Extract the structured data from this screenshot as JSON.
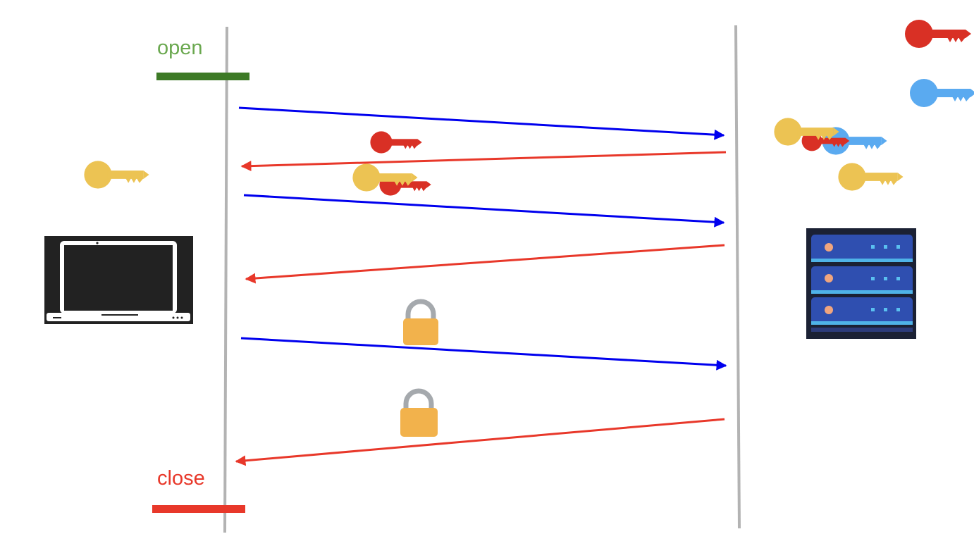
{
  "labels": {
    "open": "open",
    "close": "close"
  },
  "colors": {
    "open": "#6aa84f",
    "open_bar": "#3d7a26",
    "close": "#e8382a",
    "close_bar": "#e8382a",
    "lifeline": "#b3b3b3",
    "client_to_server_arrow": "#0000ee",
    "server_to_client_arrow": "#e8382a",
    "key_red": "#d93025",
    "key_blue": "#5aaaf0",
    "key_yellow": "#ecc353",
    "lock_body": "#f2b24c",
    "lock_shackle": "#a5a9ad"
  },
  "participants": {
    "client": "laptop-icon",
    "server": "server-rack-icon"
  },
  "messages": [
    {
      "from": "client",
      "to": "server",
      "attachment": "none"
    },
    {
      "from": "server",
      "to": "client",
      "attachment": "red-key"
    },
    {
      "from": "client",
      "to": "server",
      "attachment": "yellow-key-with-red-key"
    },
    {
      "from": "server",
      "to": "client",
      "attachment": "none"
    },
    {
      "from": "client",
      "to": "server",
      "attachment": "lock"
    },
    {
      "from": "server",
      "to": "client",
      "attachment": "lock"
    }
  ],
  "client_keys": [
    "yellow-key"
  ],
  "server_keys": [
    "red-key",
    "blue-key",
    "yellow-key-with-red-and-blue-keys",
    "yellow-key"
  ]
}
